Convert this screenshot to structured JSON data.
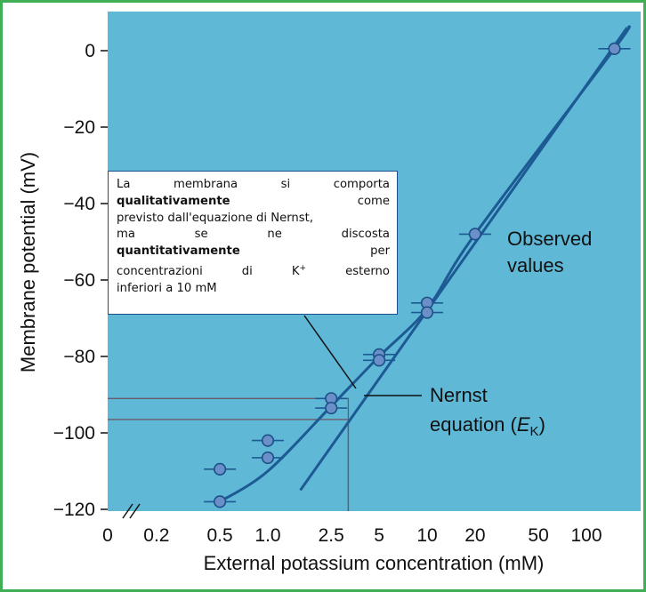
{
  "chart_data": {
    "type": "scatter",
    "xlabel": "External potassium concentration (mM)",
    "ylabel": "Membrane potential (mV)",
    "x_scale": "log",
    "x_ticks": [
      "0",
      "0.2",
      "0.5",
      "1.0",
      "2.5",
      "5",
      "10",
      "20",
      "50",
      "100"
    ],
    "y_ticks": [
      0,
      -20,
      -40,
      -60,
      -80,
      -100,
      -120
    ],
    "ylim": [
      -120,
      8
    ],
    "grid": false,
    "background_color": "#5fb8d6",
    "series": [
      {
        "name": "Observed values",
        "kind": "points",
        "color": "#6b90c9",
        "points": [
          {
            "x": 0.5,
            "y": -109.5
          },
          {
            "x": 0.5,
            "y": -118
          },
          {
            "x": 1.0,
            "y": -102
          },
          {
            "x": 1.0,
            "y": -106.5
          },
          {
            "x": 2.5,
            "y": -91
          },
          {
            "x": 2.5,
            "y": -93.5
          },
          {
            "x": 5,
            "y": -79.5
          },
          {
            "x": 5,
            "y": -81
          },
          {
            "x": 10,
            "y": -66
          },
          {
            "x": 10,
            "y": -68.5
          },
          {
            "x": 20,
            "y": -48
          },
          {
            "x": 150,
            "y": 0.5
          }
        ]
      },
      {
        "name": "Observed values",
        "kind": "curve",
        "color": "#1d5a94",
        "points": [
          {
            "x": 0.5,
            "y": -118
          },
          {
            "x": 1.0,
            "y": -110
          },
          {
            "x": 2.5,
            "y": -93
          },
          {
            "x": 5,
            "y": -80
          },
          {
            "x": 10,
            "y": -67.5
          },
          {
            "x": 20,
            "y": -48
          },
          {
            "x": 150,
            "y": 0.5
          },
          {
            "x": 180,
            "y": 6
          }
        ]
      },
      {
        "name": "Nernst equation (EK)",
        "kind": "line",
        "color": "#1d5a94",
        "points": [
          {
            "x": 1.6,
            "y": -115
          },
          {
            "x": 180,
            "y": 6
          }
        ]
      }
    ],
    "labels": {
      "observed_line1": "Observed",
      "observed_line2": "values",
      "nernst_line1": "Nernst",
      "nernst_line2_prefix": "equation (",
      "nernst_italic": "E",
      "nernst_sub": "K",
      "nernst_line2_suffix": ")"
    },
    "guides": [
      {
        "y": -91,
        "x_end": 3.2
      },
      {
        "y": -96.5,
        "x_end": 3.2
      }
    ]
  },
  "note": {
    "lines": [
      [
        "La",
        "membrana",
        "si",
        "comporta"
      ],
      [
        "qualitativamente",
        "come"
      ],
      [
        "previsto dall'equazione di Nernst,"
      ],
      [
        "ma",
        "se",
        "ne",
        "discosta"
      ],
      [
        "quantitativamente",
        "per"
      ],
      [
        "concentrazioni",
        "di",
        "K",
        "esterno"
      ],
      [
        "inferiori a 10 mM"
      ]
    ],
    "bold_words": [
      "qualitativamente",
      "quantitativamente"
    ],
    "superscript": "+"
  }
}
